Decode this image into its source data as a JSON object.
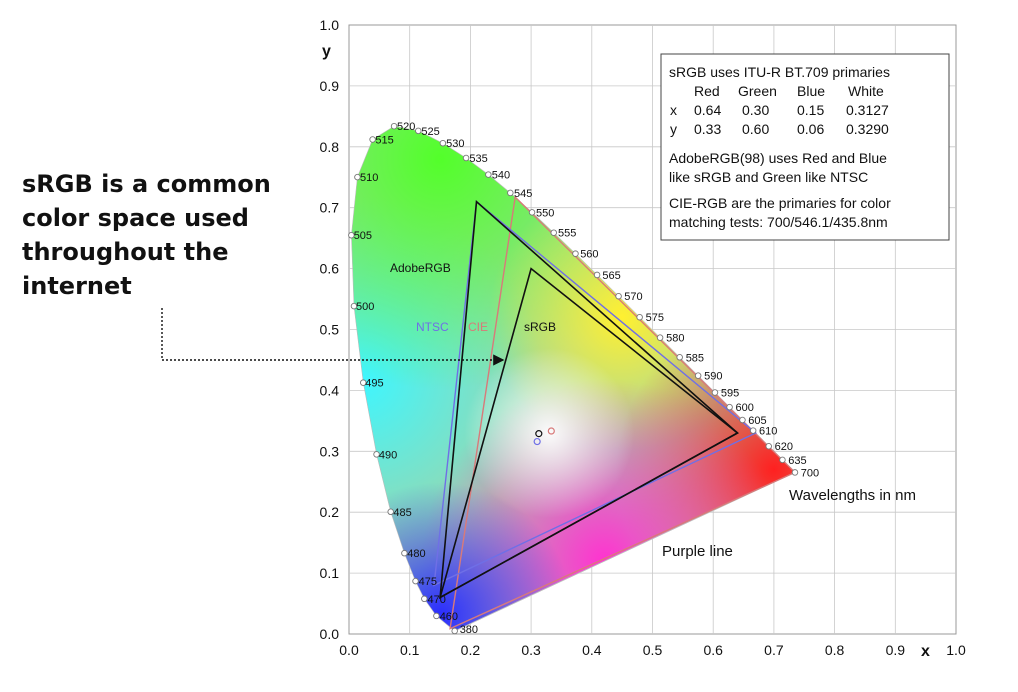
{
  "caption": {
    "lines": [
      "sRGB is a common",
      "color space used",
      "throughout the",
      "internet"
    ]
  },
  "chart_data": {
    "type": "scatter",
    "xlabel": "x",
    "ylabel": "y",
    "xlim": [
      0,
      1
    ],
    "ylim": [
      0,
      1
    ],
    "x_ticks": [
      "0.0",
      "0.1",
      "0.2",
      "0.3",
      "0.4",
      "0.5",
      "0.6",
      "0.7",
      "0.8",
      "0.9",
      "1.0"
    ],
    "y_ticks": [
      "0.0",
      "0.1",
      "0.2",
      "0.3",
      "0.4",
      "0.5",
      "0.6",
      "0.7",
      "0.8",
      "0.9",
      "1.0"
    ],
    "grid": true,
    "spectral_locus": [
      {
        "label": "380",
        "x": 0.1741,
        "y": 0.005
      },
      {
        "label": "460",
        "x": 0.144,
        "y": 0.0297
      },
      {
        "label": "470",
        "x": 0.1241,
        "y": 0.0578
      },
      {
        "label": "475",
        "x": 0.1096,
        "y": 0.0868
      },
      {
        "label": "480",
        "x": 0.0913,
        "y": 0.1327
      },
      {
        "label": "485",
        "x": 0.0687,
        "y": 0.2007
      },
      {
        "label": "490",
        "x": 0.0454,
        "y": 0.295
      },
      {
        "label": "495",
        "x": 0.0235,
        "y": 0.4127
      },
      {
        "label": "500",
        "x": 0.0082,
        "y": 0.5384
      },
      {
        "label": "505",
        "x": 0.0039,
        "y": 0.6548
      },
      {
        "label": "510",
        "x": 0.0139,
        "y": 0.7502
      },
      {
        "label": "515",
        "x": 0.0389,
        "y": 0.812
      },
      {
        "label": "520",
        "x": 0.0743,
        "y": 0.8338
      },
      {
        "label": "525",
        "x": 0.1142,
        "y": 0.8262
      },
      {
        "label": "530",
        "x": 0.1547,
        "y": 0.8059
      },
      {
        "label": "535",
        "x": 0.1929,
        "y": 0.7816
      },
      {
        "label": "540",
        "x": 0.2296,
        "y": 0.7543
      },
      {
        "label": "545",
        "x": 0.2658,
        "y": 0.7243
      },
      {
        "label": "550",
        "x": 0.3016,
        "y": 0.6923
      },
      {
        "label": "555",
        "x": 0.3373,
        "y": 0.6589
      },
      {
        "label": "560",
        "x": 0.3731,
        "y": 0.6245
      },
      {
        "label": "565",
        "x": 0.4087,
        "y": 0.5896
      },
      {
        "label": "570",
        "x": 0.4441,
        "y": 0.5547
      },
      {
        "label": "575",
        "x": 0.4788,
        "y": 0.5202
      },
      {
        "label": "580",
        "x": 0.5125,
        "y": 0.4866
      },
      {
        "label": "585",
        "x": 0.5448,
        "y": 0.4544
      },
      {
        "label": "590",
        "x": 0.5752,
        "y": 0.4242
      },
      {
        "label": "595",
        "x": 0.6029,
        "y": 0.3965
      },
      {
        "label": "600",
        "x": 0.627,
        "y": 0.3725
      },
      {
        "label": "605",
        "x": 0.6482,
        "y": 0.3514
      },
      {
        "label": "610",
        "x": 0.6658,
        "y": 0.334
      },
      {
        "label": "620",
        "x": 0.6915,
        "y": 0.3083
      },
      {
        "label": "635",
        "x": 0.7141,
        "y": 0.2859
      },
      {
        "label": "700",
        "x": 0.7347,
        "y": 0.2653
      }
    ],
    "gamuts": [
      {
        "name": "sRGB",
        "color": "#111111",
        "points": [
          [
            0.64,
            0.33
          ],
          [
            0.3,
            0.6
          ],
          [
            0.15,
            0.06
          ]
        ],
        "white": [
          0.3127,
          0.329
        ]
      },
      {
        "name": "AdobeRGB",
        "color": "#111111",
        "points": [
          [
            0.64,
            0.33
          ],
          [
            0.21,
            0.71
          ],
          [
            0.15,
            0.06
          ]
        ],
        "white": [
          0.3127,
          0.329
        ]
      },
      {
        "name": "NTSC",
        "color": "#6f6fe6",
        "points": [
          [
            0.67,
            0.33
          ],
          [
            0.21,
            0.71
          ],
          [
            0.14,
            0.08
          ]
        ],
        "white": [
          0.31,
          0.316
        ]
      },
      {
        "name": "CIE",
        "color": "#d87a7a",
        "points": [
          [
            0.7347,
            0.2653
          ],
          [
            0.2738,
            0.7174
          ],
          [
            0.1666,
            0.0089
          ]
        ],
        "white": [
          0.3333,
          0.3333
        ]
      }
    ],
    "gamut_labels": [
      {
        "text": "AdobeRGB",
        "x": 0.07,
        "y": 0.605,
        "color": "#111111"
      },
      {
        "text": "NTSC",
        "x": 0.11,
        "y": 0.495,
        "color": "#6f6fe6"
      },
      {
        "text": "CIE",
        "x": 0.198,
        "y": 0.495,
        "color": "#d87a7a"
      },
      {
        "text": "sRGB",
        "x": 0.288,
        "y": 0.495,
        "color": "#111111"
      }
    ],
    "annotations": {
      "wavelengths": "Wavelengths in nm",
      "purple_line": "Purple line"
    },
    "info_box": {
      "title": "sRGB uses ITU-R BT.709 primaries",
      "table": {
        "header": [
          "",
          "Red",
          "Green",
          "Blue",
          "White"
        ],
        "rows": [
          [
            "x",
            "0.64",
            "0.30",
            "0.15",
            "0.3127"
          ],
          [
            "y",
            "0.33",
            "0.60",
            "0.06",
            "0.3290"
          ]
        ]
      },
      "para1": [
        "AdobeRGB(98) uses Red and Blue",
        "like sRGB and Green like NTSC"
      ],
      "para2": [
        "CIE-RGB are the primaries for color",
        "matching tests: 700/546.1/435.8nm"
      ]
    }
  }
}
